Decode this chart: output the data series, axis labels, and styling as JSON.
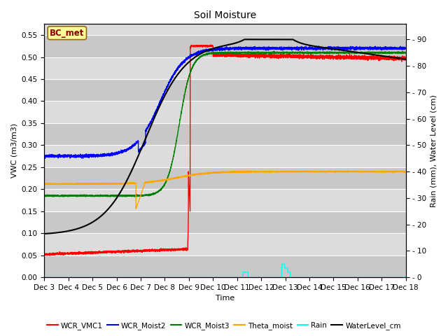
{
  "title": "Soil Moisture",
  "xlabel": "Time",
  "ylabel_left": "VWC (m3/m3)",
  "ylabel_right": "Rain (mm), Water Level (cm)",
  "xlim_days": [
    3,
    18
  ],
  "ylim_left": [
    0.0,
    0.575
  ],
  "ylim_right": [
    0,
    95.83
  ],
  "yticks_left": [
    0.0,
    0.05,
    0.1,
    0.15,
    0.2,
    0.25,
    0.3,
    0.35,
    0.4,
    0.45,
    0.5,
    0.55
  ],
  "yticks_right": [
    0,
    10,
    20,
    30,
    40,
    50,
    60,
    70,
    80,
    90
  ],
  "xtick_labels": [
    "Dec 3",
    "Dec 4",
    "Dec 5",
    "Dec 6",
    "Dec 7",
    "Dec 8",
    "Dec 9",
    "Dec 10",
    "Dec 11",
    "Dec 12",
    "Dec 13",
    "Dec 14",
    "Dec 15",
    "Dec 16",
    "Dec 17",
    "Dec 18"
  ],
  "annotation_box": "BC_met",
  "bg_light": "#dcdcdc",
  "bg_dark": "#c8c8c8",
  "grid_color": "white",
  "colors": {
    "WCR_VMC1": "red",
    "WCR_Moist2": "blue",
    "WCR_Moist3": "green",
    "Theta_moist": "orange",
    "Rain": "cyan",
    "WaterLevel_cm": "black"
  },
  "title_fontsize": 10,
  "label_fontsize": 8,
  "tick_fontsize": 7.5
}
